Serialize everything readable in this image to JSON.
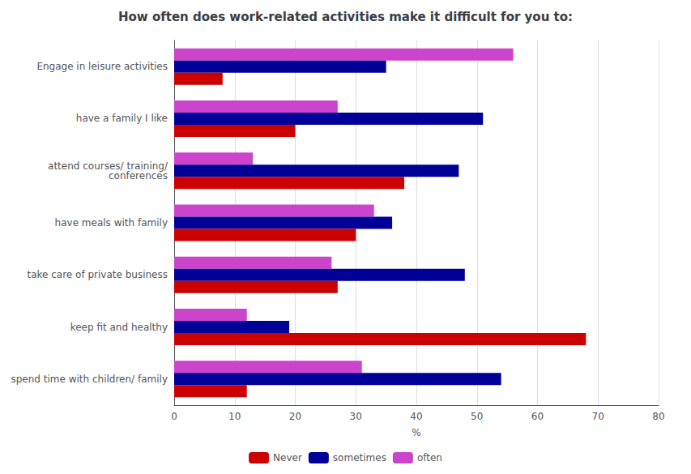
{
  "chart_data": {
    "type": "bar",
    "orientation": "horizontal",
    "title": "How often does work-related activities make it difficult for you to:",
    "categories": [
      "Engage in leisure activities",
      "have a family I like",
      "attend courses/ training/\n  conferences",
      "have meals with family",
      "take care of private business",
      "keep fit and healthy",
      "spend time with children/ family"
    ],
    "series": [
      {
        "name": "often",
        "color": "#cc44cc",
        "values": [
          56,
          27,
          13,
          33,
          26,
          12,
          31
        ]
      },
      {
        "name": "sometimes",
        "color": "#000099",
        "values": [
          35,
          51,
          47,
          36,
          48,
          19,
          54
        ]
      },
      {
        "name": "Never",
        "color": "#cc0000",
        "values": [
          8,
          20,
          38,
          30,
          27,
          68,
          12
        ]
      }
    ],
    "xlabel": "%",
    "xlim": [
      0,
      80
    ],
    "xticks": [
      0,
      10,
      20,
      30,
      40,
      50,
      60,
      70,
      80
    ],
    "grid": true,
    "legend": "bottom"
  }
}
